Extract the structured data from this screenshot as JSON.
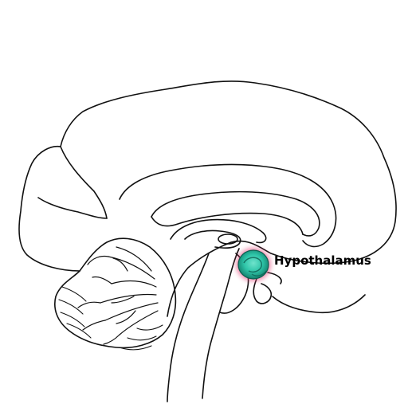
{
  "label": {
    "text": "Hypothalamus"
  },
  "colors": {
    "outline": "#111111",
    "highlight_fill": "#2ec4a8",
    "highlight_dark": "#12806c",
    "highlight_glow": "#e0306a",
    "background": "#ffffff"
  },
  "icons": {
    "structure": "brain-sagittal-section"
  }
}
